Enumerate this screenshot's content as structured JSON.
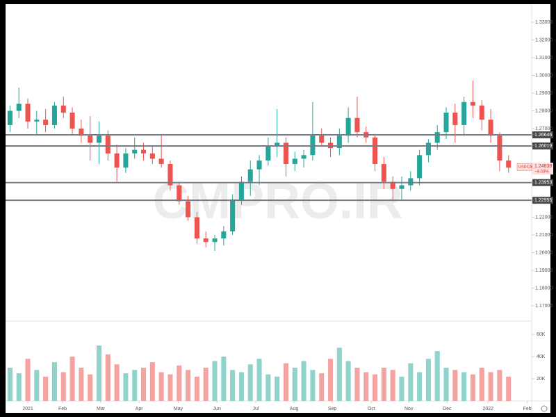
{
  "chart_data": {
    "type": "candlestick",
    "symbol": "USDCAD",
    "watermark": "CMPRO.IR",
    "categories": [
      null,
      null,
      null,
      null,
      null,
      null,
      null,
      null,
      null,
      null,
      null,
      null,
      null,
      null,
      null,
      null,
      null,
      null,
      null,
      null,
      null,
      null,
      null,
      null,
      null,
      null,
      null,
      null,
      null,
      null,
      null,
      null,
      null,
      null,
      null,
      null,
      null,
      null,
      null,
      null,
      null,
      null,
      null,
      null,
      null,
      null,
      null,
      null,
      null,
      null,
      null,
      null,
      null,
      null,
      null,
      null,
      null
    ],
    "open": [
      1.272,
      1.28,
      1.284,
      1.274,
      1.275,
      1.272,
      1.283,
      1.279,
      1.27,
      1.266,
      1.262,
      1.266,
      1.256,
      1.248,
      1.256,
      1.258,
      1.256,
      1.253,
      1.25,
      1.238,
      1.229,
      1.22,
      1.208,
      1.206,
      1.208,
      1.212,
      1.23,
      1.24,
      1.247,
      1.252,
      1.26,
      1.262,
      1.25,
      1.253,
      1.255,
      1.266,
      1.262,
      1.259,
      1.266,
      1.276,
      1.268,
      1.265,
      1.25,
      1.24,
      1.236,
      1.238,
      1.242,
      1.255,
      1.262,
      1.268,
      1.279,
      1.272,
      1.285,
      1.283,
      1.275,
      1.266,
      1.252
    ],
    "high": [
      1.283,
      1.293,
      1.287,
      1.28,
      1.281,
      1.285,
      1.288,
      1.282,
      1.275,
      1.277,
      1.274,
      1.269,
      1.261,
      1.259,
      1.265,
      1.262,
      1.26,
      1.266,
      1.252,
      1.24,
      1.232,
      1.223,
      1.212,
      1.21,
      1.215,
      1.233,
      1.243,
      1.252,
      1.255,
      1.265,
      1.281,
      1.265,
      1.257,
      1.258,
      1.285,
      1.27,
      1.265,
      1.27,
      1.282,
      1.288,
      1.271,
      1.267,
      1.254,
      1.243,
      1.243,
      1.246,
      1.258,
      1.264,
      1.272,
      1.282,
      1.284,
      1.288,
      1.297,
      1.286,
      1.281,
      1.268,
      1.255
    ],
    "low": [
      1.268,
      1.276,
      1.27,
      1.266,
      1.268,
      1.27,
      1.276,
      1.267,
      1.262,
      1.252,
      1.25,
      1.252,
      1.24,
      1.245,
      1.253,
      1.252,
      1.25,
      1.248,
      1.235,
      1.227,
      1.218,
      1.205,
      1.203,
      1.201,
      1.204,
      1.21,
      1.227,
      1.232,
      1.238,
      1.249,
      1.254,
      1.243,
      1.246,
      1.248,
      1.252,
      1.26,
      1.254,
      1.255,
      1.262,
      1.265,
      1.262,
      1.246,
      1.236,
      1.229,
      1.23,
      1.235,
      1.238,
      1.251,
      1.258,
      1.264,
      1.262,
      1.266,
      1.276,
      1.269,
      1.262,
      1.246,
      1.245
    ],
    "close": [
      1.28,
      1.284,
      1.274,
      1.275,
      1.272,
      1.283,
      1.279,
      1.27,
      1.266,
      1.262,
      1.266,
      1.256,
      1.248,
      1.256,
      1.258,
      1.256,
      1.253,
      1.25,
      1.238,
      1.229,
      1.22,
      1.208,
      1.206,
      1.208,
      1.212,
      1.23,
      1.24,
      1.247,
      1.252,
      1.26,
      1.262,
      1.25,
      1.253,
      1.255,
      1.266,
      1.262,
      1.259,
      1.266,
      1.276,
      1.268,
      1.265,
      1.25,
      1.24,
      1.236,
      1.238,
      1.242,
      1.255,
      1.262,
      1.268,
      1.279,
      1.272,
      1.285,
      1.283,
      1.275,
      1.266,
      1.252,
      1.248
    ],
    "volume": [
      30000,
      25000,
      38000,
      28000,
      22000,
      35000,
      26000,
      40000,
      30000,
      24000,
      50000,
      42000,
      33000,
      25000,
      28000,
      30000,
      35000,
      26000,
      24000,
      32000,
      28000,
      22000,
      30000,
      36000,
      40000,
      28000,
      26000,
      33000,
      38000,
      24000,
      22000,
      34000,
      30000,
      36000,
      28000,
      25000,
      38000,
      48000,
      36000,
      30000,
      26000,
      24000,
      30000,
      28000,
      22000,
      34000,
      26000,
      38000,
      45000,
      30000,
      28000,
      26000,
      24000,
      30000,
      26000,
      28000,
      22000
    ],
    "up_color": "#26a69a",
    "down_color": "#ef5350",
    "xlim": [
      -0.5,
      58.6
    ],
    "xticks": [
      {
        "value": 2.0,
        "label": "2021"
      },
      {
        "value": 5.9,
        "label": "Feb"
      },
      {
        "value": 10.2,
        "label": "Mar"
      },
      {
        "value": 14.5,
        "label": "Apr"
      },
      {
        "value": 18.9,
        "label": "May"
      },
      {
        "value": 23.25,
        "label": "Jun"
      },
      {
        "value": 27.6,
        "label": "Jul"
      },
      {
        "value": 31.9,
        "label": "Aug"
      },
      {
        "value": 36.2,
        "label": "Sep"
      },
      {
        "value": 40.6,
        "label": "Oct"
      },
      {
        "value": 44.8,
        "label": "Nov"
      },
      {
        "value": 49.1,
        "label": "Dec"
      },
      {
        "value": 53.7,
        "label": "2022"
      },
      {
        "value": 58.1,
        "label": "Feb"
      }
    ],
    "ylim": [
      1.1614,
      1.3394
    ],
    "yticks": [
      {
        "value": 1.17,
        "label": "1.17000"
      },
      {
        "value": 1.18,
        "label": "1.18000"
      },
      {
        "value": 1.19,
        "label": "1.19000"
      },
      {
        "value": 1.2,
        "label": "1.20000"
      },
      {
        "value": 1.21,
        "label": "1.21000"
      },
      {
        "value": 1.22,
        "label": "1.22000"
      },
      {
        "value": 1.27,
        "label": "1.27000"
      },
      {
        "value": 1.28,
        "label": "1.28000"
      },
      {
        "value": 1.29,
        "label": "1.29000"
      },
      {
        "value": 1.3,
        "label": "1.30000"
      },
      {
        "value": 1.31,
        "label": "1.31000"
      },
      {
        "value": 1.32,
        "label": "1.32000"
      },
      {
        "value": 1.33,
        "label": "1.33000"
      }
    ],
    "vlim": [
      0,
      72000
    ],
    "vticks": [
      {
        "value": 20000,
        "label": "20K"
      },
      {
        "value": 40000,
        "label": "40K"
      },
      {
        "value": 60000,
        "label": "60K"
      }
    ],
    "levels": [
      1.26646,
      1.26019,
      1.23953,
      1.22955
    ],
    "last": {
      "price": 1.24838,
      "change": "−4.03%"
    }
  }
}
